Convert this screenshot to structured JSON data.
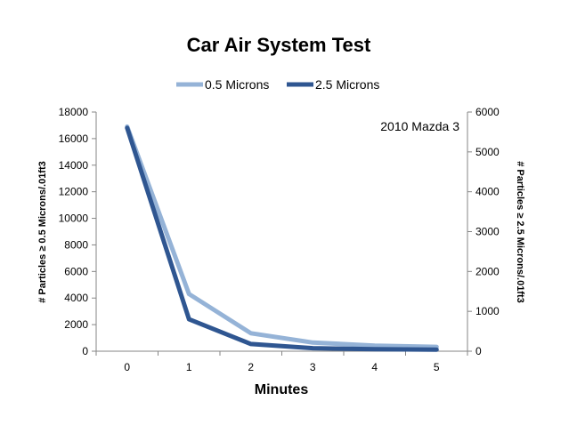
{
  "chart_data": {
    "type": "line",
    "title": "Car Air System Test",
    "annotation": "2010 Mazda 3",
    "xlabel": "Minutes",
    "ylabel": "# Particles ≥ 0.5 Microns/.01ft3",
    "y2label": "# Particles ≥ 2.5 Microns/.01ft3",
    "x": [
      0,
      1,
      2,
      3,
      4,
      5
    ],
    "x_tick_labels": [
      "0",
      "1",
      "2",
      "3",
      "4",
      "5"
    ],
    "ylim": [
      0,
      18000
    ],
    "y_ticks": [
      0,
      2000,
      4000,
      6000,
      8000,
      10000,
      12000,
      14000,
      16000,
      18000
    ],
    "y_tick_labels": [
      "0",
      "2000",
      "4000",
      "6000",
      "8000",
      "10000",
      "12000",
      "14000",
      "16000",
      "18000"
    ],
    "y2lim": [
      0,
      6000
    ],
    "y2_ticks": [
      0,
      1000,
      2000,
      3000,
      4000,
      5000,
      6000
    ],
    "y2_tick_labels": [
      "0",
      "1000",
      "2000",
      "3000",
      "4000",
      "5000",
      "6000"
    ],
    "legend_position": "top",
    "grid": false,
    "series": [
      {
        "name": "0.5 Microns",
        "axis": "left",
        "color": "#95B3D7",
        "values": [
          16900,
          4300,
          1350,
          650,
          420,
          330
        ]
      },
      {
        "name": "2.5 Microns",
        "axis": "right",
        "color": "#2F5691",
        "values": [
          5600,
          800,
          180,
          75,
          50,
          40
        ]
      }
    ]
  }
}
